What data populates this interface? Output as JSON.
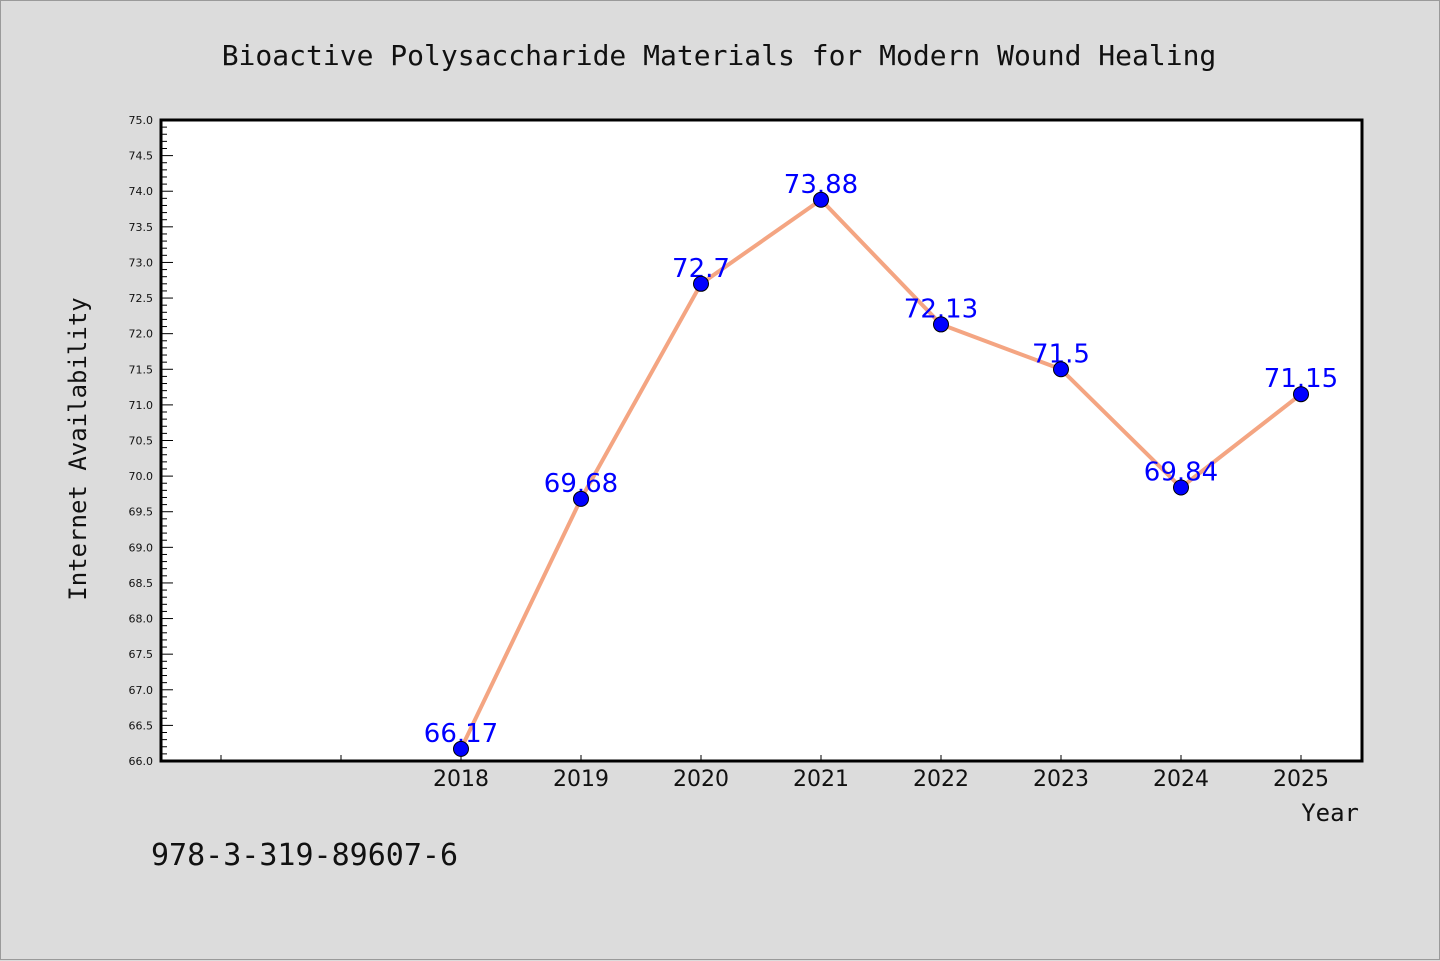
{
  "colors": {
    "background": "#dcdcdc",
    "plot_background": "#ffffff",
    "line": "#f4a582",
    "marker": "#0000ff",
    "data_label": "#0000ff"
  },
  "footer_text": "978-3-319-89607-6",
  "chart_data": {
    "type": "line",
    "title": "Bioactive Polysaccharide Materials for Modern Wound Healing",
    "xlabel": "Year",
    "ylabel": "Internet Availability",
    "x": [
      "2018",
      "2019",
      "2020",
      "2021",
      "2022",
      "2023",
      "2024",
      "2025"
    ],
    "series": [
      {
        "values": [
          66.17,
          69.68,
          72.7,
          73.88,
          72.13,
          71.5,
          69.84,
          71.15
        ]
      }
    ],
    "data_labels": [
      "66.17",
      "69.68",
      "72.7",
      "73.88",
      "72.13",
      "71.5",
      "69.84",
      "71.15"
    ],
    "ylim": [
      66.0,
      75.0
    ],
    "yticks": [
      "66.0",
      "66.5",
      "67.0",
      "67.5",
      "68.0",
      "68.5",
      "69.0",
      "69.5",
      "70.0",
      "70.5",
      "71.0",
      "71.5",
      "72.0",
      "72.5",
      "73.0",
      "73.5",
      "74.0",
      "74.5",
      "75.0"
    ],
    "grid": false,
    "legend": "none"
  }
}
